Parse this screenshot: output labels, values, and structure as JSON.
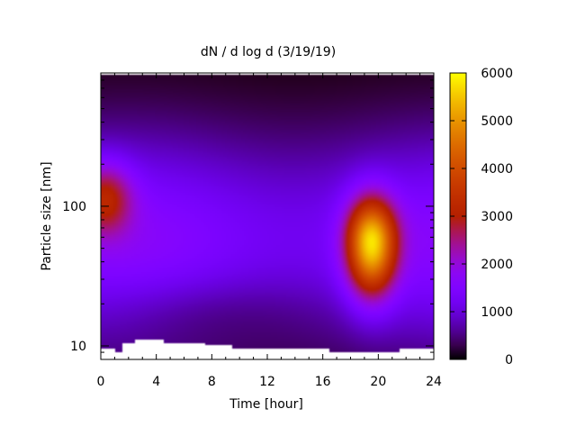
{
  "chart_data": {
    "type": "heatmap",
    "title": "dN / d log d (3/19/19)",
    "xlabel": "Time [hour]",
    "ylabel": "Particle size [nm]",
    "xlim": [
      0,
      24
    ],
    "ylim": [
      8,
      900
    ],
    "yscale": "log",
    "x_ticks": [
      "0",
      "4",
      "8",
      "12",
      "16",
      "20",
      "24"
    ],
    "y_ticks": [
      "10",
      "100"
    ],
    "colorbar": {
      "range": [
        0,
        6000
      ],
      "ticks": [
        "0",
        "1000",
        "2000",
        "3000",
        "4000",
        "5000",
        "6000"
      ],
      "palette": "gnuplot"
    },
    "features": [
      {
        "time_hour": 0.3,
        "size_nm": 115,
        "value": 3300
      },
      {
        "time_hour": 19.5,
        "size_nm": 55,
        "value": 6000
      },
      {
        "time_hour": 12,
        "size_nm": 90,
        "value": 1500
      }
    ],
    "lower_size_limit_nm": [
      [
        0,
        9.5
      ],
      [
        1,
        9.0
      ],
      [
        1.5,
        10.5
      ],
      [
        2.5,
        11.0
      ],
      [
        4.5,
        10.5
      ],
      [
        7.5,
        10.0
      ],
      [
        9.5,
        9.5
      ],
      [
        16.5,
        9.0
      ],
      [
        20.5,
        9.0
      ],
      [
        21.5,
        9.5
      ],
      [
        23.5,
        9.5
      ]
    ]
  }
}
